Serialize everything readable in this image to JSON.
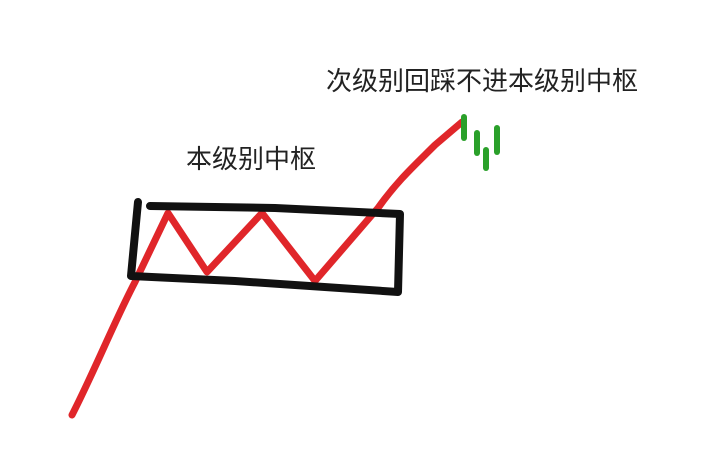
{
  "labels": {
    "central_zone": "本级别中枢",
    "pullback_note": "次级别回踩不进本级别中枢"
  },
  "colors": {
    "price_path": "#e0262a",
    "box_outline": "#111111",
    "pullback_bars": "#2aa02a",
    "text": "#222222",
    "background": "#ffffff"
  }
}
